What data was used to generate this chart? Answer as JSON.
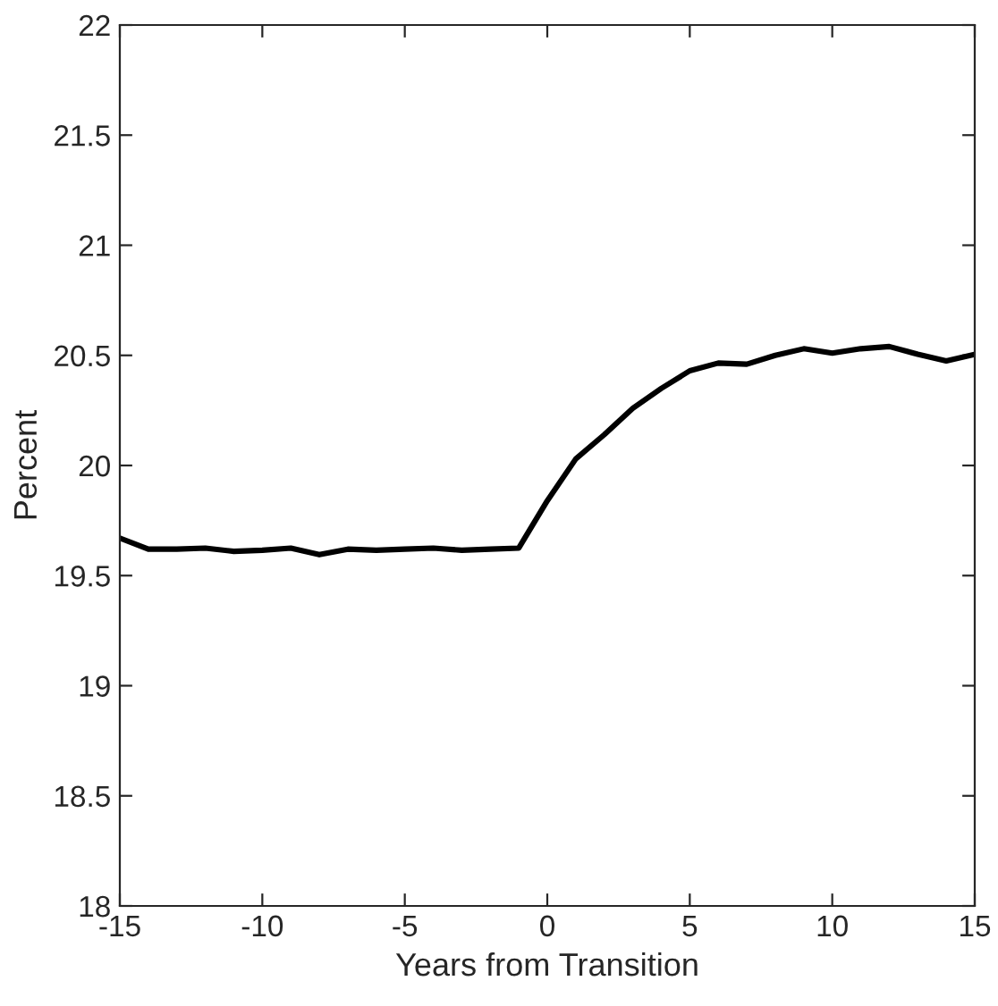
{
  "chart_data": {
    "type": "line",
    "xlabel": "Years from Transition",
    "ylabel": "Percent",
    "x": [
      -15,
      -14,
      -13,
      -12,
      -11,
      -10,
      -9,
      -8,
      -7,
      -6,
      -5,
      -4,
      -3,
      -2,
      -1,
      0,
      1,
      2,
      3,
      4,
      5,
      6,
      7,
      8,
      9,
      10,
      11,
      12,
      13,
      14,
      15
    ],
    "series": [
      {
        "color": "#000000",
        "values": [
          19.67,
          19.62,
          19.62,
          19.625,
          19.61,
          19.615,
          19.625,
          19.595,
          19.62,
          19.615,
          19.62,
          19.625,
          19.615,
          19.62,
          19.625,
          19.84,
          20.03,
          20.14,
          20.26,
          20.35,
          20.43,
          20.465,
          20.46,
          20.5,
          20.53,
          20.51,
          20.53,
          20.54,
          20.505,
          20.475,
          20.505
        ]
      }
    ],
    "xlim": [
      -15,
      15
    ],
    "xticks": [
      -15,
      -10,
      -5,
      0,
      5,
      10,
      15
    ],
    "ylim": [
      18,
      22
    ],
    "yticks": [
      18,
      18.5,
      19,
      19.5,
      20,
      20.5,
      21,
      21.5,
      22
    ],
    "grid": false,
    "legend": false,
    "marker": "none",
    "line_style": "solid"
  }
}
